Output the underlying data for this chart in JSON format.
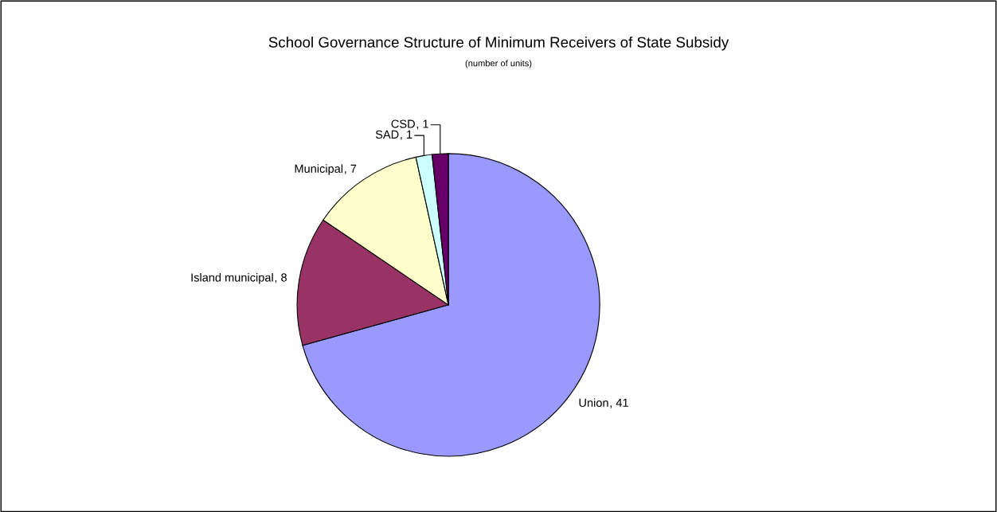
{
  "chart_data": {
    "type": "pie",
    "title": "School Governance Structure of Minimum Receivers of State Subsidy",
    "subtitle": "(number of units)",
    "categories": [
      "Union",
      "Island municipal",
      "Municipal",
      "SAD",
      "CSD"
    ],
    "values": [
      41,
      8,
      7,
      1,
      1
    ],
    "value_labels": [
      ", 41",
      ", 8",
      ", 7",
      ", 1",
      ", 1"
    ],
    "colors": [
      "#9999ff",
      "#993366",
      "#ffffcc",
      "#ccffff",
      "#660066"
    ],
    "legend": false
  }
}
